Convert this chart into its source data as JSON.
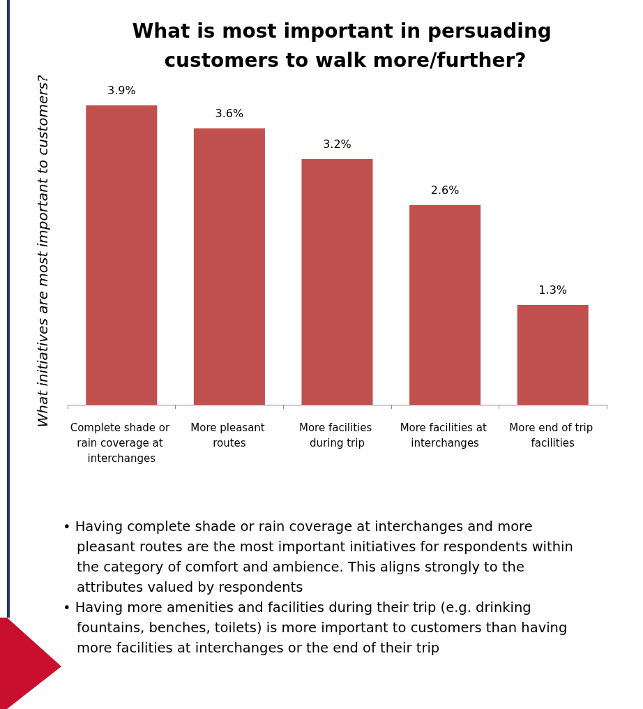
{
  "chart_data": {
    "type": "bar",
    "title": "What is most important in persuading customers to walk more/further?",
    "ylabel": "What initiatives are most important to customers?",
    "categories": [
      "Complete shade or rain coverage at interchanges",
      "More pleasant routes",
      "More facilities during trip",
      "More facilities at interchanges",
      "More end of trip facilities"
    ],
    "values": [
      3.9,
      3.6,
      3.2,
      2.6,
      1.3
    ],
    "value_labels": [
      "3.9%",
      "3.6%",
      "3.2%",
      "2.6%",
      "1.3%"
    ],
    "color": "#c0504d",
    "grid": false,
    "annotations": [
      "• Having complete shade or rain coverage at interchanges and more pleasant routes are the most important initiatives for respondents within the category of comfort and ambience. This aligns strongly to the attributes valued by respondents",
      "• Having more amenities and facilities during their trip (e.g. drinking fountains, benches, toilets) is more important to customers than having more facilities at interchanges or the end of their trip"
    ]
  }
}
